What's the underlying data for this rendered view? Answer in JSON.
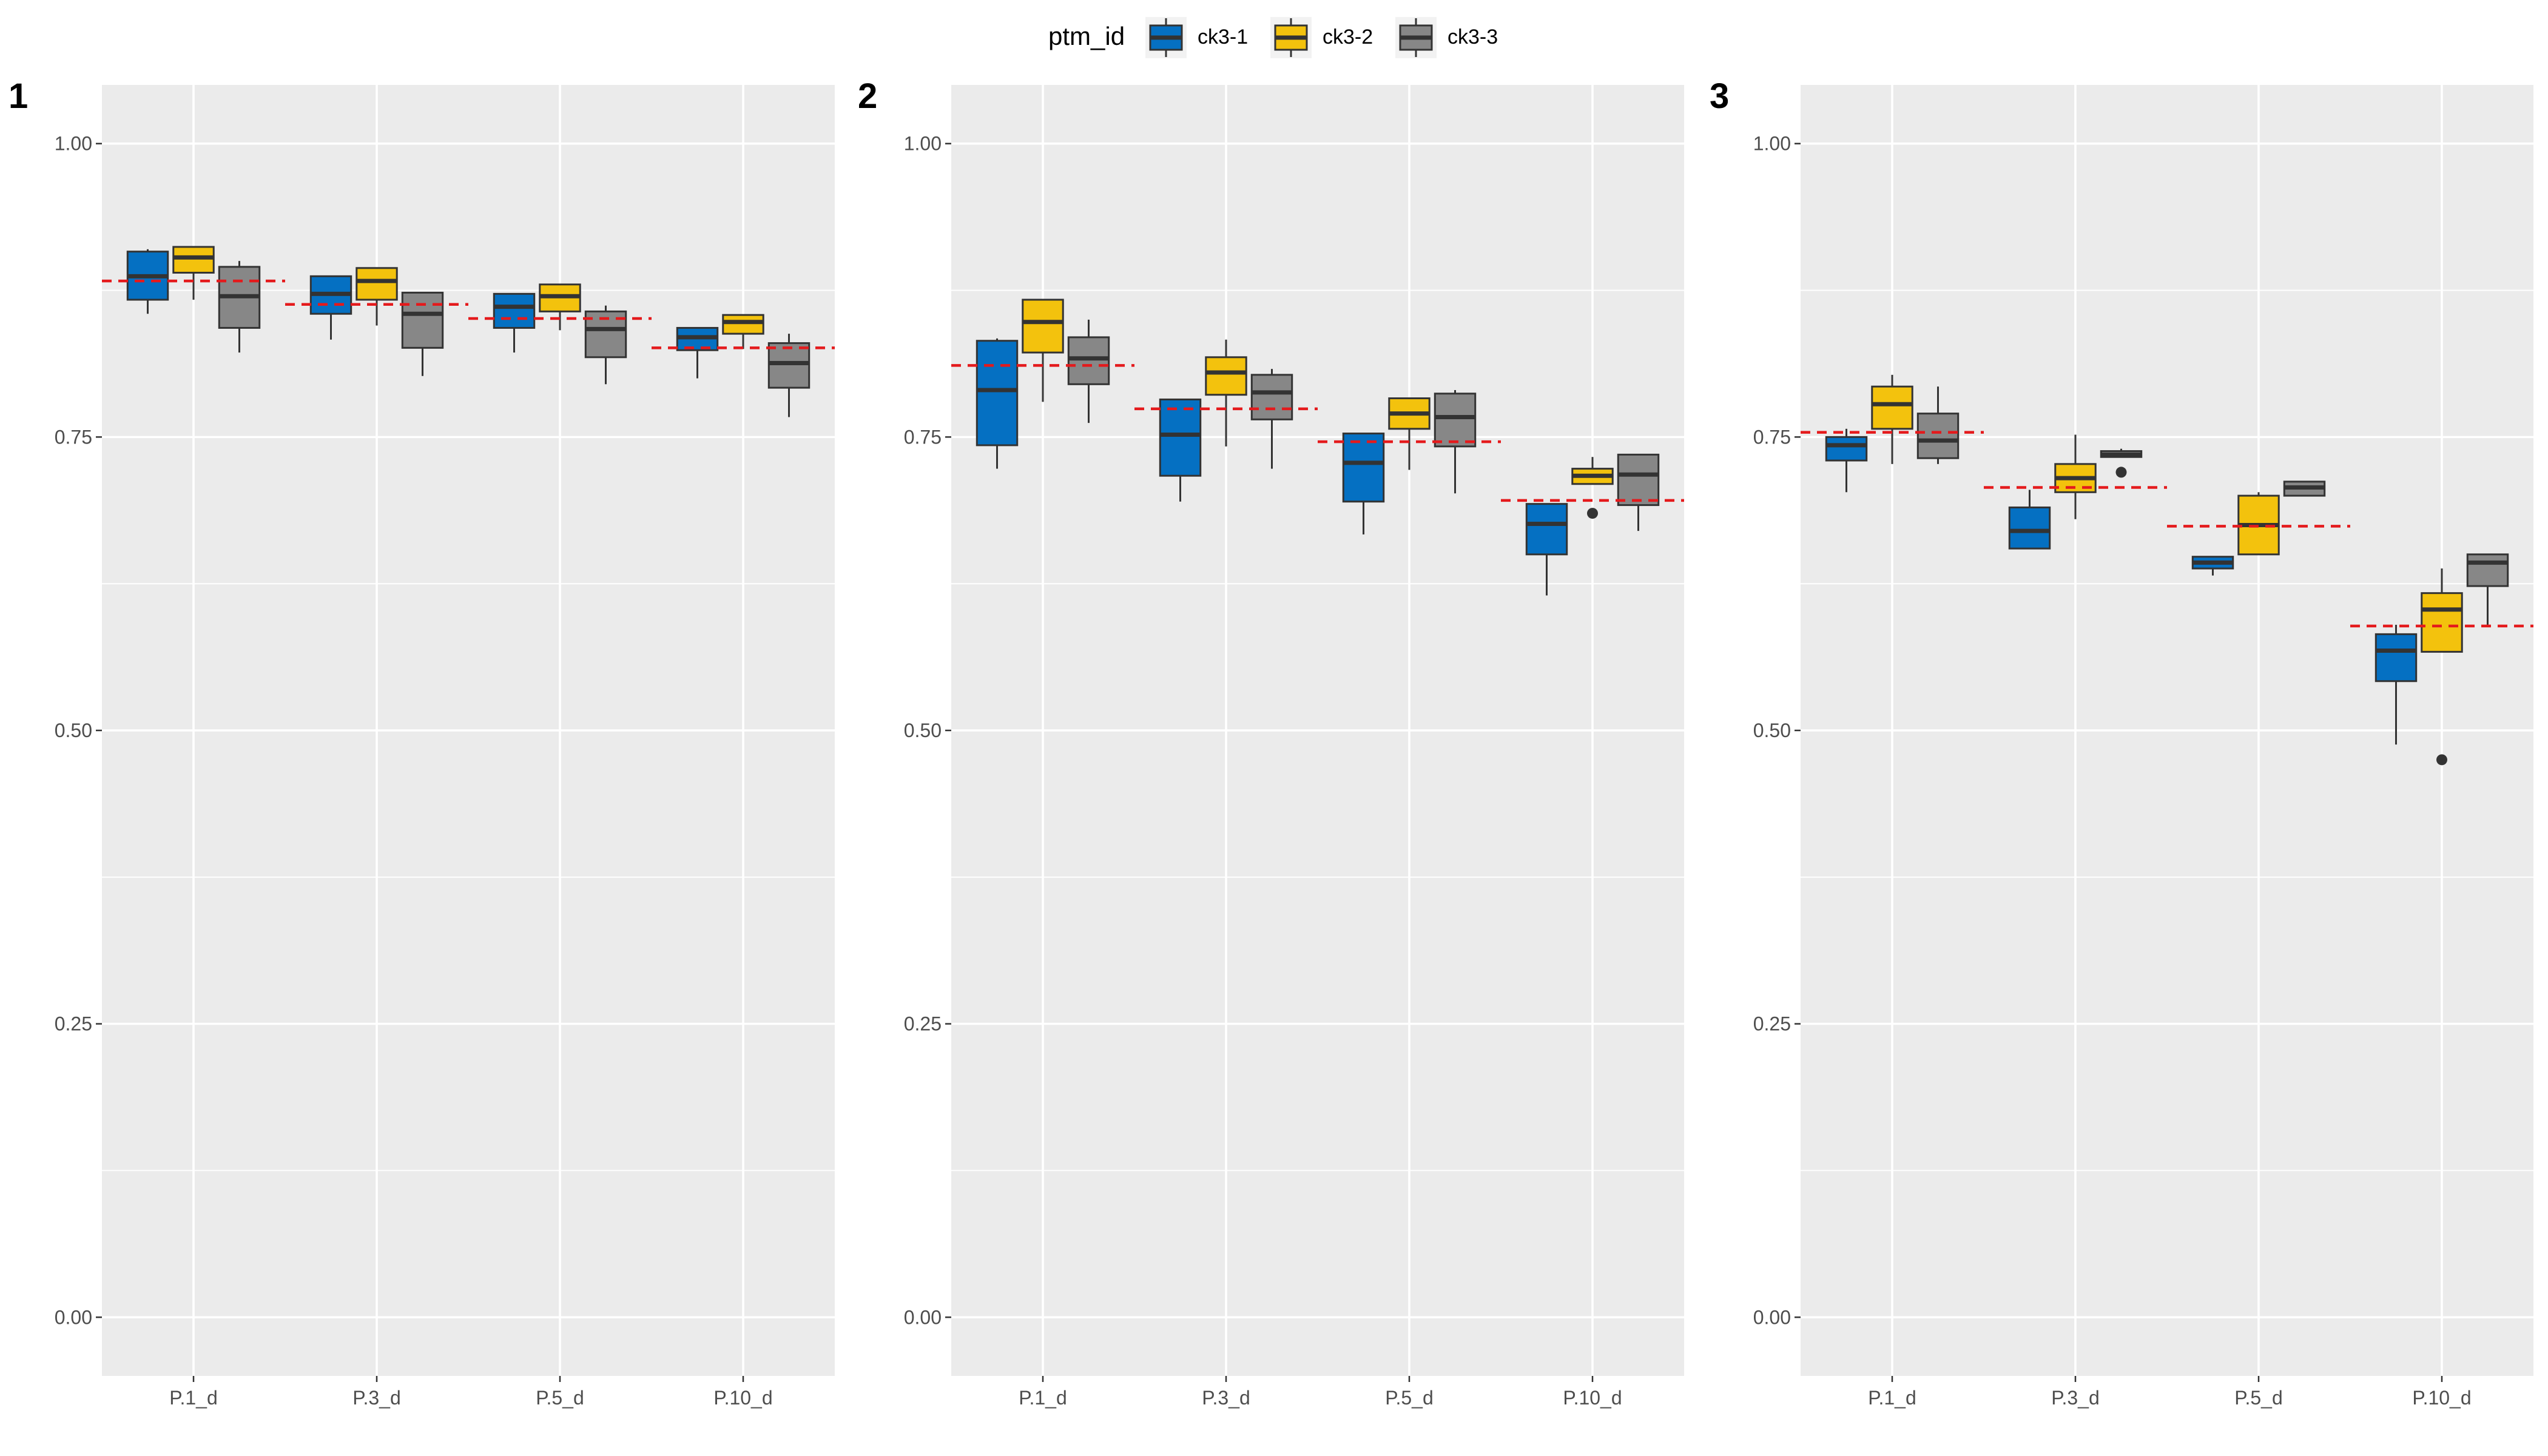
{
  "legend": {
    "title": "ptm_id",
    "entries": [
      "ck3-1",
      "ck3-2",
      "ck3-3"
    ]
  },
  "colors": {
    "ck3-1": "#0570C2",
    "ck3-2": "#F3C20D",
    "ck3-3": "#878787",
    "reference_line": "#E41A1C",
    "panel_background": "#EBEBEB"
  },
  "chart_data": [
    {
      "type": "box",
      "tag": "1",
      "categories": [
        "P.1_d",
        "P.3_d",
        "P.5_d",
        "P.10_d"
      ],
      "ylim": [
        -0.05,
        1.05
      ],
      "yticks": [
        "0.00",
        "0.25",
        "0.50",
        "0.75",
        "1.00"
      ],
      "grid": true,
      "series": [
        {
          "name": "ck3-1",
          "boxes": [
            {
              "lower": 0.855,
              "q1": 0.867,
              "median": 0.887,
              "q3": 0.908,
              "upper": 0.91,
              "outliers": []
            },
            {
              "lower": 0.833,
              "q1": 0.855,
              "median": 0.872,
              "q3": 0.887,
              "upper": 0.887,
              "outliers": []
            },
            {
              "lower": 0.822,
              "q1": 0.843,
              "median": 0.861,
              "q3": 0.872,
              "upper": 0.872,
              "outliers": []
            },
            {
              "lower": 0.8,
              "q1": 0.824,
              "median": 0.835,
              "q3": 0.843,
              "upper": 0.843,
              "outliers": []
            }
          ]
        },
        {
          "name": "ck3-2",
          "boxes": [
            {
              "lower": 0.867,
              "q1": 0.89,
              "median": 0.903,
              "q3": 0.912,
              "upper": 0.912,
              "outliers": []
            },
            {
              "lower": 0.845,
              "q1": 0.867,
              "median": 0.883,
              "q3": 0.894,
              "upper": 0.894,
              "outliers": []
            },
            {
              "lower": 0.841,
              "q1": 0.857,
              "median": 0.87,
              "q3": 0.88,
              "upper": 0.88,
              "outliers": []
            },
            {
              "lower": 0.825,
              "q1": 0.838,
              "median": 0.848,
              "q3": 0.854,
              "upper": 0.854,
              "outliers": []
            }
          ]
        },
        {
          "name": "ck3-3",
          "boxes": [
            {
              "lower": 0.822,
              "q1": 0.843,
              "median": 0.87,
              "q3": 0.895,
              "upper": 0.9,
              "outliers": []
            },
            {
              "lower": 0.802,
              "q1": 0.826,
              "median": 0.855,
              "q3": 0.873,
              "upper": 0.873,
              "outliers": []
            },
            {
              "lower": 0.795,
              "q1": 0.818,
              "median": 0.842,
              "q3": 0.857,
              "upper": 0.862,
              "outliers": []
            },
            {
              "lower": 0.767,
              "q1": 0.792,
              "median": 0.813,
              "q3": 0.83,
              "upper": 0.838,
              "outliers": []
            }
          ]
        }
      ],
      "reference_lines": [
        0.883,
        0.863,
        0.851,
        0.826
      ]
    },
    {
      "type": "box",
      "tag": "2",
      "categories": [
        "P.1_d",
        "P.3_d",
        "P.5_d",
        "P.10_d"
      ],
      "ylim": [
        -0.05,
        1.05
      ],
      "yticks": [
        "0.00",
        "0.25",
        "0.50",
        "0.75",
        "1.00"
      ],
      "grid": true,
      "series": [
        {
          "name": "ck3-1",
          "boxes": [
            {
              "lower": 0.723,
              "q1": 0.743,
              "median": 0.79,
              "q3": 0.832,
              "upper": 0.834,
              "outliers": []
            },
            {
              "lower": 0.695,
              "q1": 0.717,
              "median": 0.752,
              "q3": 0.782,
              "upper": 0.782,
              "outliers": []
            },
            {
              "lower": 0.667,
              "q1": 0.695,
              "median": 0.728,
              "q3": 0.753,
              "upper": 0.753,
              "outliers": []
            },
            {
              "lower": 0.615,
              "q1": 0.65,
              "median": 0.676,
              "q3": 0.693,
              "upper": 0.693,
              "outliers": []
            }
          ]
        },
        {
          "name": "ck3-2",
          "boxes": [
            {
              "lower": 0.78,
              "q1": 0.822,
              "median": 0.848,
              "q3": 0.867,
              "upper": 0.867,
              "outliers": []
            },
            {
              "lower": 0.742,
              "q1": 0.786,
              "median": 0.805,
              "q3": 0.818,
              "upper": 0.833,
              "outliers": []
            },
            {
              "lower": 0.722,
              "q1": 0.757,
              "median": 0.77,
              "q3": 0.783,
              "upper": 0.783,
              "outliers": []
            },
            {
              "lower": 0.71,
              "q1": 0.71,
              "median": 0.717,
              "q3": 0.723,
              "upper": 0.733,
              "outliers": [
                0.685
              ]
            }
          ]
        },
        {
          "name": "ck3-3",
          "boxes": [
            {
              "lower": 0.762,
              "q1": 0.795,
              "median": 0.817,
              "q3": 0.835,
              "upper": 0.85,
              "outliers": []
            },
            {
              "lower": 0.723,
              "q1": 0.765,
              "median": 0.788,
              "q3": 0.803,
              "upper": 0.808,
              "outliers": []
            },
            {
              "lower": 0.702,
              "q1": 0.742,
              "median": 0.767,
              "q3": 0.787,
              "upper": 0.79,
              "outliers": []
            },
            {
              "lower": 0.67,
              "q1": 0.692,
              "median": 0.718,
              "q3": 0.735,
              "upper": 0.735,
              "outliers": []
            }
          ]
        }
      ],
      "reference_lines": [
        0.811,
        0.774,
        0.746,
        0.696
      ]
    },
    {
      "type": "box",
      "tag": "3",
      "categories": [
        "P.1_d",
        "P.3_d",
        "P.5_d",
        "P.10_d"
      ],
      "ylim": [
        -0.05,
        1.05
      ],
      "yticks": [
        "0.00",
        "0.25",
        "0.50",
        "0.75",
        "1.00"
      ],
      "grid": true,
      "series": [
        {
          "name": "ck3-1",
          "boxes": [
            {
              "lower": 0.703,
              "q1": 0.73,
              "median": 0.743,
              "q3": 0.75,
              "upper": 0.757,
              "outliers": []
            },
            {
              "lower": 0.655,
              "q1": 0.655,
              "median": 0.67,
              "q3": 0.69,
              "upper": 0.705,
              "outliers": []
            },
            {
              "lower": 0.632,
              "q1": 0.638,
              "median": 0.643,
              "q3": 0.648,
              "upper": 0.648,
              "outliers": []
            },
            {
              "lower": 0.488,
              "q1": 0.542,
              "median": 0.568,
              "q3": 0.582,
              "upper": 0.59,
              "outliers": []
            }
          ]
        },
        {
          "name": "ck3-2",
          "boxes": [
            {
              "lower": 0.727,
              "q1": 0.757,
              "median": 0.778,
              "q3": 0.793,
              "upper": 0.803,
              "outliers": []
            },
            {
              "lower": 0.68,
              "q1": 0.703,
              "median": 0.715,
              "q3": 0.727,
              "upper": 0.752,
              "outliers": []
            },
            {
              "lower": 0.65,
              "q1": 0.65,
              "median": 0.675,
              "q3": 0.7,
              "upper": 0.703,
              "outliers": []
            },
            {
              "lower": 0.567,
              "q1": 0.567,
              "median": 0.603,
              "q3": 0.617,
              "upper": 0.638,
              "outliers": [
                0.475
              ]
            }
          ]
        },
        {
          "name": "ck3-3",
          "boxes": [
            {
              "lower": 0.727,
              "q1": 0.732,
              "median": 0.747,
              "q3": 0.77,
              "upper": 0.793,
              "outliers": []
            },
            {
              "lower": 0.733,
              "q1": 0.733,
              "median": 0.735,
              "q3": 0.738,
              "upper": 0.74,
              "outliers": [
                0.72
              ]
            },
            {
              "lower": 0.7,
              "q1": 0.7,
              "median": 0.707,
              "q3": 0.712,
              "upper": 0.712,
              "outliers": []
            },
            {
              "lower": 0.59,
              "q1": 0.623,
              "median": 0.643,
              "q3": 0.65,
              "upper": 0.65,
              "outliers": []
            }
          ]
        }
      ],
      "reference_lines": [
        0.754,
        0.707,
        0.674,
        0.589
      ]
    }
  ]
}
